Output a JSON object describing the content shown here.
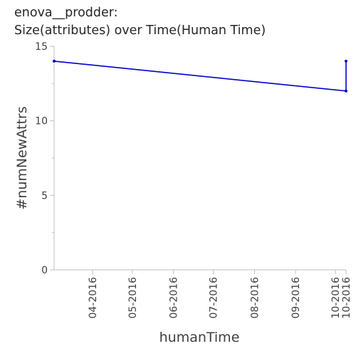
{
  "chart_data": {
    "type": "line",
    "title_lines": [
      "enova__prodder:",
      "Size(attributes) over Time(Human Time)"
    ],
    "xlabel": "humanTime",
    "ylabel": "#numNewAttrs",
    "x_ticks": [
      "04-2016",
      "05-2016",
      "06-2016",
      "07-2016",
      "08-2016",
      "09-2016",
      "10-2016",
      "10-2016"
    ],
    "x_tick_dates": [
      "2016-04-01",
      "2016-05-01",
      "2016-06-01",
      "2016-07-01",
      "2016-08-01",
      "2016-09-01",
      "2016-10-01",
      "2016-10-09"
    ],
    "y_ticks": [
      0,
      5,
      10,
      15
    ],
    "ylim": [
      0,
      15
    ],
    "xlim": [
      "2016-03-03",
      "2016-10-09"
    ],
    "grid": false,
    "series": [
      {
        "color": "#0000cc",
        "points": [
          {
            "x": "2016-03-03",
            "y": 14
          },
          {
            "x": "2016-10-09",
            "y": 12
          },
          {
            "x": "2016-10-09",
            "y": 14
          }
        ]
      }
    ]
  }
}
